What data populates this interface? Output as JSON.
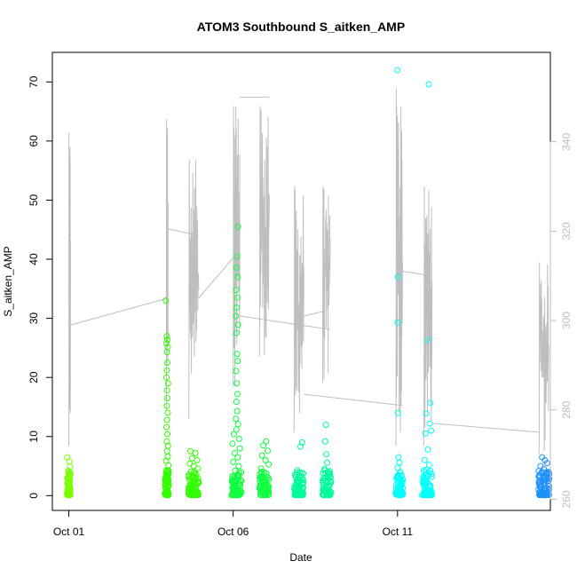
{
  "chart_data": {
    "type": "scatter",
    "title": "ATOM3 Southbound S_aitken_AMP",
    "xlabel": "Date",
    "ylabel": "S_aitken_AMP",
    "x_tick_labels": [
      "Oct 01",
      "Oct 06",
      "Oct 11"
    ],
    "x_tick_days": [
      1,
      6,
      11
    ],
    "xlim_days": [
      0.5,
      15.65
    ],
    "ylim": [
      -2.5,
      75
    ],
    "y_ticks": [
      0,
      10,
      20,
      30,
      40,
      50,
      60,
      70
    ],
    "y2lim": [
      257.5,
      360
    ],
    "y2_ticks": [
      260,
      280,
      300,
      320,
      340
    ],
    "grid": false,
    "series": [
      {
        "kind": "points",
        "color": "#7CFC00",
        "flights": [
          {
            "center": 1.0,
            "width": 0.1,
            "points": [
              [
                0.95,
                6.5
              ],
              [
                1.02,
                5.8
              ],
              [
                1.04,
                4.9
              ],
              [
                0.98,
                4.2
              ],
              [
                1.05,
                3.6
              ],
              [
                0.97,
                2.8
              ],
              [
                1.0,
                2.1
              ],
              [
                1.03,
                1.4
              ],
              [
                0.96,
                0.8
              ],
              [
                1.01,
                0.3
              ]
            ]
          }
        ]
      },
      {
        "kind": "points",
        "color": "#32FF00",
        "flights": [
          {
            "center": 3.98,
            "width": 0.12,
            "points": [
              [
                3.95,
                33.0
              ],
              [
                3.98,
                27.0
              ],
              [
                4.0,
                26.4
              ],
              [
                3.97,
                25.8
              ],
              [
                4.01,
                25.1
              ],
              [
                3.99,
                24.3
              ],
              [
                4.0,
                22.5
              ],
              [
                3.98,
                21.2
              ],
              [
                3.97,
                20.0
              ],
              [
                4.02,
                19.0
              ],
              [
                3.99,
                17.8
              ],
              [
                4.0,
                16.5
              ],
              [
                3.98,
                15.2
              ],
              [
                4.01,
                14.0
              ],
              [
                3.99,
                12.8
              ],
              [
                3.97,
                11.6
              ],
              [
                4.0,
                10.4
              ],
              [
                3.98,
                9.2
              ],
              [
                4.02,
                8.4
              ],
              [
                3.99,
                7.5
              ],
              [
                4.01,
                6.6
              ],
              [
                3.96,
                5.9
              ],
              [
                4.03,
                5.1
              ],
              [
                3.98,
                4.3
              ],
              [
                4.0,
                3.6
              ],
              [
                3.97,
                2.9
              ],
              [
                4.02,
                2.2
              ],
              [
                3.99,
                1.4
              ],
              [
                4.01,
                0.7
              ]
            ]
          },
          {
            "center": 4.8,
            "width": 0.32,
            "points": [
              [
                4.7,
                7.5
              ],
              [
                4.85,
                7.2
              ],
              [
                4.75,
                6.3
              ],
              [
                4.9,
                6.0
              ],
              [
                4.68,
                5.4
              ],
              [
                4.8,
                5.0
              ],
              [
                4.93,
                4.6
              ],
              [
                4.72,
                4.1
              ],
              [
                4.88,
                3.6
              ],
              [
                4.65,
                3.1
              ],
              [
                4.82,
                2.7
              ],
              [
                4.95,
                2.2
              ],
              [
                4.7,
                1.8
              ],
              [
                4.86,
                1.3
              ],
              [
                4.76,
                0.9
              ],
              [
                4.9,
                0.5
              ],
              [
                4.68,
                0.3
              ]
            ]
          }
        ]
      },
      {
        "kind": "points",
        "color": "#10FF40",
        "flights": [
          {
            "center": 6.1,
            "width": 0.3,
            "points": [
              [
                6.15,
                45.5
              ],
              [
                6.12,
                40.5
              ],
              [
                6.1,
                38.6
              ],
              [
                6.14,
                37.0
              ],
              [
                6.09,
                34.8
              ],
              [
                6.13,
                33.5
              ],
              [
                6.11,
                31.8
              ],
              [
                6.08,
                30.4
              ],
              [
                6.15,
                28.9
              ],
              [
                6.1,
                27.5
              ],
              [
                6.12,
                24.0
              ],
              [
                6.14,
                22.8
              ],
              [
                6.09,
                21.1
              ],
              [
                6.11,
                19.0
              ],
              [
                6.13,
                17.2
              ],
              [
                6.1,
                15.9
              ],
              [
                6.12,
                14.3
              ],
              [
                6.08,
                13.0
              ],
              [
                6.15,
                12.1
              ],
              [
                6.1,
                11.2
              ],
              [
                6.02,
                10.4
              ],
              [
                6.18,
                9.6
              ],
              [
                5.98,
                8.8
              ],
              [
                6.2,
                8.0
              ],
              [
                6.05,
                7.2
              ],
              [
                6.14,
                6.5
              ],
              [
                6.0,
                5.7
              ],
              [
                6.17,
                5.0
              ],
              [
                6.06,
                4.2
              ],
              [
                6.12,
                3.5
              ],
              [
                5.99,
                2.8
              ],
              [
                6.19,
                2.1
              ],
              [
                6.04,
                1.4
              ],
              [
                6.11,
                0.8
              ]
            ]
          },
          {
            "center": 6.95,
            "width": 0.3,
            "points": [
              [
                7.0,
                9.2
              ],
              [
                6.92,
                8.5
              ],
              [
                7.05,
                7.6
              ],
              [
                6.88,
                6.8
              ],
              [
                6.98,
                6.0
              ],
              [
                7.08,
                5.3
              ],
              [
                6.85,
                4.6
              ],
              [
                6.95,
                3.9
              ],
              [
                7.03,
                3.2
              ],
              [
                6.9,
                2.5
              ],
              [
                7.0,
                1.8
              ],
              [
                6.87,
                1.1
              ],
              [
                6.97,
                0.5
              ]
            ]
          }
        ]
      },
      {
        "kind": "points",
        "color": "#00FA9A",
        "flights": [
          {
            "center": 8.0,
            "width": 0.28,
            "points": [
              [
                8.1,
                9.0
              ],
              [
                8.05,
                8.3
              ],
              [
                7.95,
                4.3
              ],
              [
                8.08,
                3.8
              ],
              [
                7.9,
                3.2
              ],
              [
                8.02,
                2.7
              ],
              [
                8.12,
                2.1
              ],
              [
                7.93,
                1.6
              ],
              [
                8.0,
                1.1
              ],
              [
                8.06,
                0.5
              ]
            ]
          },
          {
            "center": 8.85,
            "width": 0.26,
            "points": [
              [
                8.82,
                12.0
              ],
              [
                8.8,
                9.2
              ],
              [
                8.83,
                7.0
              ],
              [
                8.86,
                5.6
              ],
              [
                8.78,
                4.5
              ],
              [
                8.9,
                3.6
              ],
              [
                8.75,
                2.9
              ],
              [
                8.84,
                2.2
              ],
              [
                8.93,
                1.6
              ],
              [
                8.79,
                1.0
              ],
              [
                8.88,
                0.4
              ]
            ]
          }
        ]
      },
      {
        "kind": "points",
        "color": "#00FFFF",
        "flights": [
          {
            "center": 11.05,
            "width": 0.22,
            "points": [
              [
                11.0,
                72.0
              ],
              [
                11.01,
                37.0
              ],
              [
                11.0,
                29.3
              ],
              [
                11.01,
                14.0
              ],
              [
                11.03,
                6.5
              ],
              [
                11.06,
                5.6
              ],
              [
                11.0,
                4.7
              ],
              [
                11.09,
                3.9
              ],
              [
                10.98,
                3.1
              ],
              [
                11.05,
                2.4
              ],
              [
                11.12,
                1.7
              ],
              [
                11.02,
                1.0
              ],
              [
                11.08,
                0.4
              ]
            ]
          },
          {
            "center": 11.9,
            "width": 0.3,
            "points": [
              [
                11.95,
                69.6
              ],
              [
                11.93,
                26.3
              ],
              [
                12.0,
                15.7
              ],
              [
                11.88,
                13.9
              ],
              [
                11.98,
                12.2
              ],
              [
                12.02,
                11.0
              ],
              [
                11.85,
                10.5
              ],
              [
                11.92,
                7.8
              ],
              [
                11.83,
                6.0
              ],
              [
                11.96,
                5.2
              ],
              [
                11.88,
                4.4
              ],
              [
                12.04,
                3.7
              ],
              [
                11.8,
                3.0
              ],
              [
                11.91,
                2.3
              ],
              [
                12.0,
                1.6
              ],
              [
                11.86,
                0.9
              ],
              [
                11.94,
                0.3
              ]
            ]
          }
        ]
      },
      {
        "kind": "points",
        "color": "#1E90FF",
        "flights": [
          {
            "center": 15.45,
            "width": 0.34,
            "points": [
              [
                15.4,
                6.5
              ],
              [
                15.48,
                6.0
              ],
              [
                15.55,
                5.5
              ],
              [
                15.35,
                5.0
              ],
              [
                15.45,
                4.5
              ],
              [
                15.6,
                4.0
              ],
              [
                15.32,
                3.5
              ],
              [
                15.5,
                3.0
              ],
              [
                15.42,
                2.5
              ],
              [
                15.58,
                2.0
              ],
              [
                15.36,
                1.5
              ],
              [
                15.47,
                1.0
              ],
              [
                15.53,
                0.5
              ]
            ]
          }
        ]
      },
      {
        "kind": "line",
        "name": "",
        "axis": "right",
        "color": "#bebebe",
        "segments": [
          {
            "x0": 1.0,
            "x1": 1.05,
            "lo": 272,
            "hi": 342
          },
          {
            "x0": 3.97,
            "x1": 4.02,
            "lo": 280,
            "hi": 345
          },
          {
            "x0": 4.65,
            "x1": 4.95,
            "lo": 278,
            "hi": 336
          },
          {
            "x0": 6.0,
            "x1": 6.2,
            "lo": 285,
            "hi": 348
          },
          {
            "x0": 6.8,
            "x1": 7.1,
            "lo": 292,
            "hi": 348
          },
          {
            "x0": 7.85,
            "x1": 8.15,
            "lo": 275,
            "hi": 330
          },
          {
            "x0": 8.72,
            "x1": 8.95,
            "lo": 286,
            "hi": 330
          },
          {
            "x0": 10.95,
            "x1": 11.15,
            "lo": 272,
            "hi": 352
          },
          {
            "x0": 11.8,
            "x1": 12.05,
            "lo": 272,
            "hi": 330
          },
          {
            "x0": 15.3,
            "x1": 15.6,
            "lo": 270,
            "hi": 313
          }
        ],
        "connectors": [
          [
            1.05,
            299.0,
            4.02,
            305.0
          ],
          [
            4.02,
            320.5,
            4.95,
            319.0
          ],
          [
            4.95,
            305.0,
            6.0,
            314.0
          ],
          [
            6.2,
            350.0,
            7.1,
            350.0
          ],
          [
            6.2,
            301.0,
            8.95,
            298.0
          ],
          [
            8.15,
            301.0,
            8.72,
            302.0
          ],
          [
            8.15,
            283.5,
            11.15,
            281.0
          ],
          [
            11.15,
            311.0,
            12.05,
            310.0
          ],
          [
            12.05,
            277.0,
            15.3,
            275.0
          ]
        ]
      }
    ]
  }
}
